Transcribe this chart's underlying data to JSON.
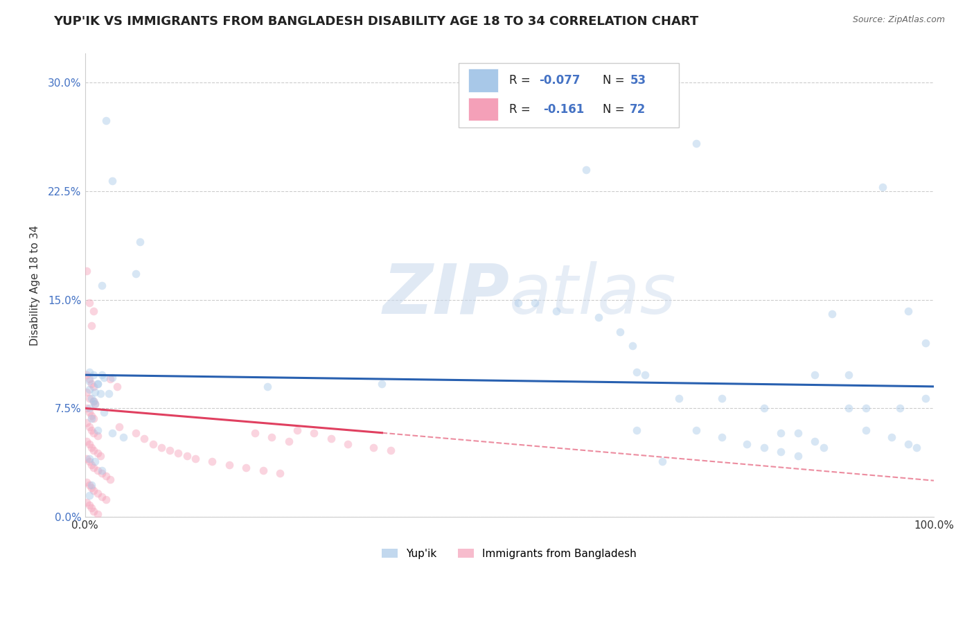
{
  "title": "YUP'IK VS IMMIGRANTS FROM BANGLADESH DISABILITY AGE 18 TO 34 CORRELATION CHART",
  "source": "Source: ZipAtlas.com",
  "ylabel": "Disability Age 18 to 34",
  "xlim": [
    0.0,
    1.0
  ],
  "ylim": [
    0.0,
    0.32
  ],
  "yticks": [
    0.0,
    0.075,
    0.15,
    0.225,
    0.3
  ],
  "ytick_labels": [
    "0.0%",
    "7.5%",
    "15.0%",
    "22.5%",
    "30.0%"
  ],
  "xtick_labels": [
    "0.0%",
    "100.0%"
  ],
  "blue_color": "#a8c8e8",
  "pink_color": "#f4a0b8",
  "blue_line_color": "#2860b0",
  "pink_line_color": "#e04060",
  "watermark": "ZIPatlas",
  "blue_scatter": [
    [
      0.025,
      0.274
    ],
    [
      0.032,
      0.232
    ],
    [
      0.065,
      0.19
    ],
    [
      0.06,
      0.168
    ],
    [
      0.02,
      0.16
    ],
    [
      0.005,
      0.1
    ],
    [
      0.01,
      0.098
    ],
    [
      0.022,
      0.096
    ],
    [
      0.015,
      0.092
    ],
    [
      0.005,
      0.088
    ],
    [
      0.012,
      0.086
    ],
    [
      0.018,
      0.085
    ],
    [
      0.028,
      0.085
    ],
    [
      0.008,
      0.082
    ],
    [
      0.01,
      0.08
    ],
    [
      0.02,
      0.098
    ],
    [
      0.032,
      0.096
    ],
    [
      0.005,
      0.094
    ],
    [
      0.015,
      0.092
    ],
    [
      0.012,
      0.078
    ],
    [
      0.005,
      0.075
    ],
    [
      0.022,
      0.072
    ],
    [
      0.008,
      0.068
    ],
    [
      0.015,
      0.06
    ],
    [
      0.032,
      0.058
    ],
    [
      0.045,
      0.055
    ],
    [
      0.005,
      0.04
    ],
    [
      0.012,
      0.038
    ],
    [
      0.02,
      0.032
    ],
    [
      0.008,
      0.022
    ],
    [
      0.005,
      0.015
    ],
    [
      0.215,
      0.09
    ],
    [
      0.35,
      0.092
    ],
    [
      0.51,
      0.148
    ],
    [
      0.53,
      0.148
    ],
    [
      0.555,
      0.142
    ],
    [
      0.605,
      0.138
    ],
    [
      0.72,
      0.258
    ],
    [
      0.59,
      0.24
    ],
    [
      0.94,
      0.228
    ],
    [
      0.63,
      0.128
    ],
    [
      0.645,
      0.118
    ],
    [
      0.65,
      0.1
    ],
    [
      0.66,
      0.098
    ],
    [
      0.7,
      0.082
    ],
    [
      0.75,
      0.082
    ],
    [
      0.8,
      0.075
    ],
    [
      0.82,
      0.058
    ],
    [
      0.84,
      0.058
    ],
    [
      0.86,
      0.052
    ],
    [
      0.87,
      0.048
    ],
    [
      0.86,
      0.098
    ],
    [
      0.9,
      0.098
    ],
    [
      0.88,
      0.14
    ],
    [
      0.97,
      0.142
    ],
    [
      0.99,
      0.12
    ],
    [
      0.99,
      0.082
    ],
    [
      0.9,
      0.075
    ],
    [
      0.92,
      0.075
    ],
    [
      0.96,
      0.075
    ],
    [
      0.92,
      0.06
    ],
    [
      0.95,
      0.055
    ],
    [
      0.97,
      0.05
    ],
    [
      0.98,
      0.048
    ],
    [
      0.65,
      0.06
    ],
    [
      0.72,
      0.06
    ],
    [
      0.75,
      0.055
    ],
    [
      0.78,
      0.05
    ],
    [
      0.8,
      0.048
    ],
    [
      0.82,
      0.045
    ],
    [
      0.84,
      0.042
    ],
    [
      0.68,
      0.038
    ]
  ],
  "pink_scatter": [
    [
      0.002,
      0.17
    ],
    [
      0.005,
      0.148
    ],
    [
      0.01,
      0.142
    ],
    [
      0.008,
      0.132
    ],
    [
      0.002,
      0.098
    ],
    [
      0.005,
      0.095
    ],
    [
      0.008,
      0.092
    ],
    [
      0.01,
      0.09
    ],
    [
      0.002,
      0.086
    ],
    [
      0.005,
      0.082
    ],
    [
      0.01,
      0.08
    ],
    [
      0.012,
      0.078
    ],
    [
      0.002,
      0.075
    ],
    [
      0.005,
      0.072
    ],
    [
      0.008,
      0.07
    ],
    [
      0.01,
      0.068
    ],
    [
      0.002,
      0.065
    ],
    [
      0.005,
      0.062
    ],
    [
      0.008,
      0.06
    ],
    [
      0.01,
      0.058
    ],
    [
      0.015,
      0.056
    ],
    [
      0.002,
      0.052
    ],
    [
      0.005,
      0.05
    ],
    [
      0.008,
      0.048
    ],
    [
      0.01,
      0.046
    ],
    [
      0.015,
      0.044
    ],
    [
      0.018,
      0.042
    ],
    [
      0.002,
      0.04
    ],
    [
      0.005,
      0.038
    ],
    [
      0.008,
      0.036
    ],
    [
      0.01,
      0.034
    ],
    [
      0.015,
      0.032
    ],
    [
      0.02,
      0.03
    ],
    [
      0.025,
      0.028
    ],
    [
      0.03,
      0.026
    ],
    [
      0.002,
      0.024
    ],
    [
      0.005,
      0.022
    ],
    [
      0.008,
      0.02
    ],
    [
      0.01,
      0.018
    ],
    [
      0.015,
      0.016
    ],
    [
      0.02,
      0.014
    ],
    [
      0.025,
      0.012
    ],
    [
      0.002,
      0.01
    ],
    [
      0.005,
      0.008
    ],
    [
      0.008,
      0.006
    ],
    [
      0.01,
      0.004
    ],
    [
      0.015,
      0.002
    ],
    [
      0.04,
      0.062
    ],
    [
      0.06,
      0.058
    ],
    [
      0.07,
      0.054
    ],
    [
      0.08,
      0.05
    ],
    [
      0.09,
      0.048
    ],
    [
      0.1,
      0.046
    ],
    [
      0.11,
      0.044
    ],
    [
      0.12,
      0.042
    ],
    [
      0.13,
      0.04
    ],
    [
      0.15,
      0.038
    ],
    [
      0.17,
      0.036
    ],
    [
      0.19,
      0.034
    ],
    [
      0.21,
      0.032
    ],
    [
      0.23,
      0.03
    ],
    [
      0.25,
      0.06
    ],
    [
      0.27,
      0.058
    ],
    [
      0.29,
      0.054
    ],
    [
      0.31,
      0.05
    ],
    [
      0.34,
      0.048
    ],
    [
      0.36,
      0.046
    ],
    [
      0.2,
      0.058
    ],
    [
      0.22,
      0.055
    ],
    [
      0.24,
      0.052
    ],
    [
      0.03,
      0.095
    ],
    [
      0.038,
      0.09
    ]
  ],
  "blue_line": {
    "x0": 0.0,
    "y0": 0.098,
    "x1": 1.0,
    "y1": 0.09
  },
  "pink_line_solid_x0": 0.0,
  "pink_line_solid_y0": 0.075,
  "pink_line_solid_x1": 0.35,
  "pink_line_solid_y1": 0.058,
  "pink_line_dashed_x1": 1.0,
  "pink_line_dashed_y1": 0.025,
  "background_color": "#ffffff",
  "grid_color": "#cccccc",
  "title_fontsize": 13,
  "axis_label_fontsize": 11,
  "tick_fontsize": 11,
  "scatter_size": 70,
  "scatter_alpha": 0.45
}
